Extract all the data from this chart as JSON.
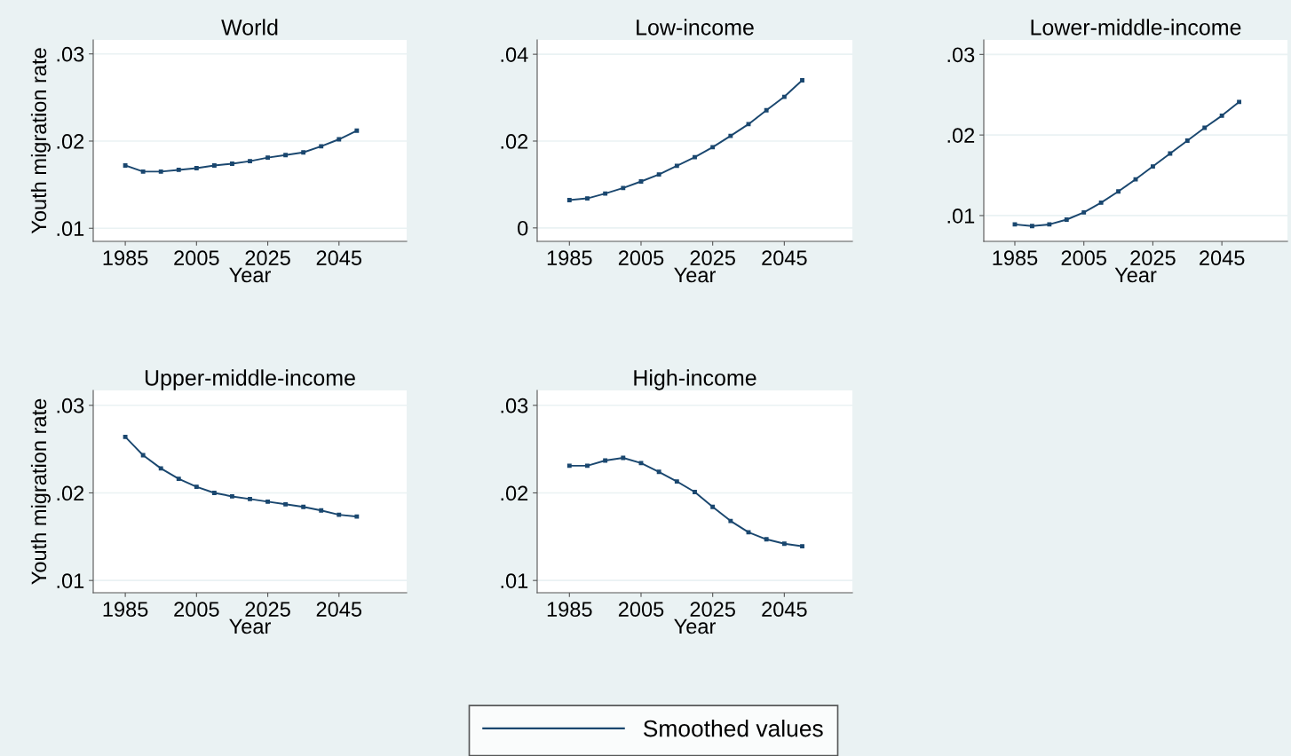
{
  "chart_data": [
    {
      "type": "line",
      "title": "World",
      "xlabel": "Year",
      "ylabel": "Youth migration rate",
      "x": [
        1985,
        1990,
        1995,
        2000,
        2005,
        2010,
        2015,
        2020,
        2025,
        2030,
        2035,
        2040,
        2045,
        2050
      ],
      "series": [
        {
          "color": "#1a476f",
          "values": [
            0.0172,
            0.0165,
            0.0165,
            0.0167,
            0.0169,
            0.0172,
            0.0174,
            0.0177,
            0.0181,
            0.0184,
            0.0187,
            0.0194,
            0.0202,
            0.0212
          ]
        }
      ],
      "xlim": [
        1976,
        2064
      ],
      "xticks": [
        1985,
        2005,
        2025,
        2045
      ],
      "ylim": [
        0.0085,
        0.0316
      ],
      "yticks": [
        {
          "value": 0.01,
          "label": ".01"
        },
        {
          "value": 0.02,
          "label": ".02"
        },
        {
          "value": 0.03,
          "label": ".03"
        }
      ],
      "grid": "y",
      "marker": "square",
      "line_style": "solid"
    },
    {
      "type": "line",
      "title": "Low-income",
      "xlabel": "Year",
      "x": [
        1985,
        1990,
        1995,
        2000,
        2005,
        2010,
        2015,
        2020,
        2025,
        2030,
        2035,
        2040,
        2045,
        2050
      ],
      "series": [
        {
          "color": "#1a476f",
          "values": [
            0.0064,
            0.0068,
            0.0079,
            0.0092,
            0.0107,
            0.0123,
            0.0143,
            0.0163,
            0.0186,
            0.0212,
            0.0239,
            0.0271,
            0.0302,
            0.034
          ]
        }
      ],
      "xlim": [
        1976,
        2064
      ],
      "xticks": [
        1985,
        2005,
        2025,
        2045
      ],
      "ylim": [
        -0.0031,
        0.0433
      ],
      "yticks": [
        0,
        {
          "value": 0.02,
          "label": ".02"
        },
        {
          "value": 0.04,
          "label": ".04"
        }
      ],
      "grid": "y",
      "marker": "square",
      "line_style": "solid"
    },
    {
      "type": "line",
      "title": "Lower-middle-income",
      "xlabel": "Year",
      "x": [
        1985,
        1990,
        1995,
        2000,
        2005,
        2010,
        2015,
        2020,
        2025,
        2030,
        2035,
        2040,
        2045,
        2050
      ],
      "series": [
        {
          "color": "#1a476f",
          "values": [
            0.0089,
            0.0087,
            0.0089,
            0.0095,
            0.0104,
            0.0116,
            0.013,
            0.0145,
            0.0161,
            0.0177,
            0.0193,
            0.0209,
            0.0224,
            0.0241
          ]
        }
      ],
      "xlim": [
        1976,
        2064
      ],
      "xticks": [
        1985,
        2005,
        2025,
        2045
      ],
      "ylim": [
        0.0068,
        0.0318
      ],
      "yticks": [
        {
          "value": 0.01,
          "label": ".01"
        },
        {
          "value": 0.02,
          "label": ".02"
        },
        {
          "value": 0.03,
          "label": ".03"
        }
      ],
      "grid": "y",
      "marker": "square",
      "line_style": "solid"
    },
    {
      "type": "line",
      "title": "Upper-middle-income",
      "xlabel": "Year",
      "ylabel": "Youth migration rate",
      "x": [
        1985,
        1990,
        1995,
        2000,
        2005,
        2010,
        2015,
        2020,
        2025,
        2030,
        2035,
        2040,
        2045,
        2050
      ],
      "series": [
        {
          "color": "#1a476f",
          "values": [
            0.0264,
            0.0243,
            0.0228,
            0.0216,
            0.0207,
            0.02,
            0.0196,
            0.0193,
            0.019,
            0.0187,
            0.0184,
            0.018,
            0.0175,
            0.0173
          ]
        }
      ],
      "xlim": [
        1976,
        2064
      ],
      "xticks": [
        1985,
        2005,
        2025,
        2045
      ],
      "ylim": [
        0.0086,
        0.0317
      ],
      "yticks": [
        {
          "value": 0.01,
          "label": ".01"
        },
        {
          "value": 0.02,
          "label": ".02"
        },
        {
          "value": 0.03,
          "label": ".03"
        }
      ],
      "grid": "y",
      "marker": "square",
      "line_style": "solid"
    },
    {
      "type": "line",
      "title": "High-income",
      "xlabel": "Year",
      "x": [
        1985,
        1990,
        1995,
        2000,
        2005,
        2010,
        2015,
        2020,
        2025,
        2030,
        2035,
        2040,
        2045,
        2050
      ],
      "series": [
        {
          "name": "Smoothed values",
          "color": "#1a476f",
          "values": [
            0.0231,
            0.0231,
            0.0237,
            0.024,
            0.0234,
            0.0224,
            0.0213,
            0.0201,
            0.0184,
            0.0168,
            0.0155,
            0.0147,
            0.0142,
            0.0139
          ]
        }
      ],
      "xlim": [
        1976,
        2064
      ],
      "xticks": [
        1985,
        2005,
        2025,
        2045
      ],
      "ylim": [
        0.0086,
        0.0317
      ],
      "yticks": [
        {
          "value": 0.01,
          "label": ".01"
        },
        {
          "value": 0.02,
          "label": ".02"
        },
        {
          "value": 0.03,
          "label": ".03"
        }
      ],
      "grid": "y",
      "marker": "square",
      "line_style": "solid",
      "legend": "bottom"
    }
  ]
}
